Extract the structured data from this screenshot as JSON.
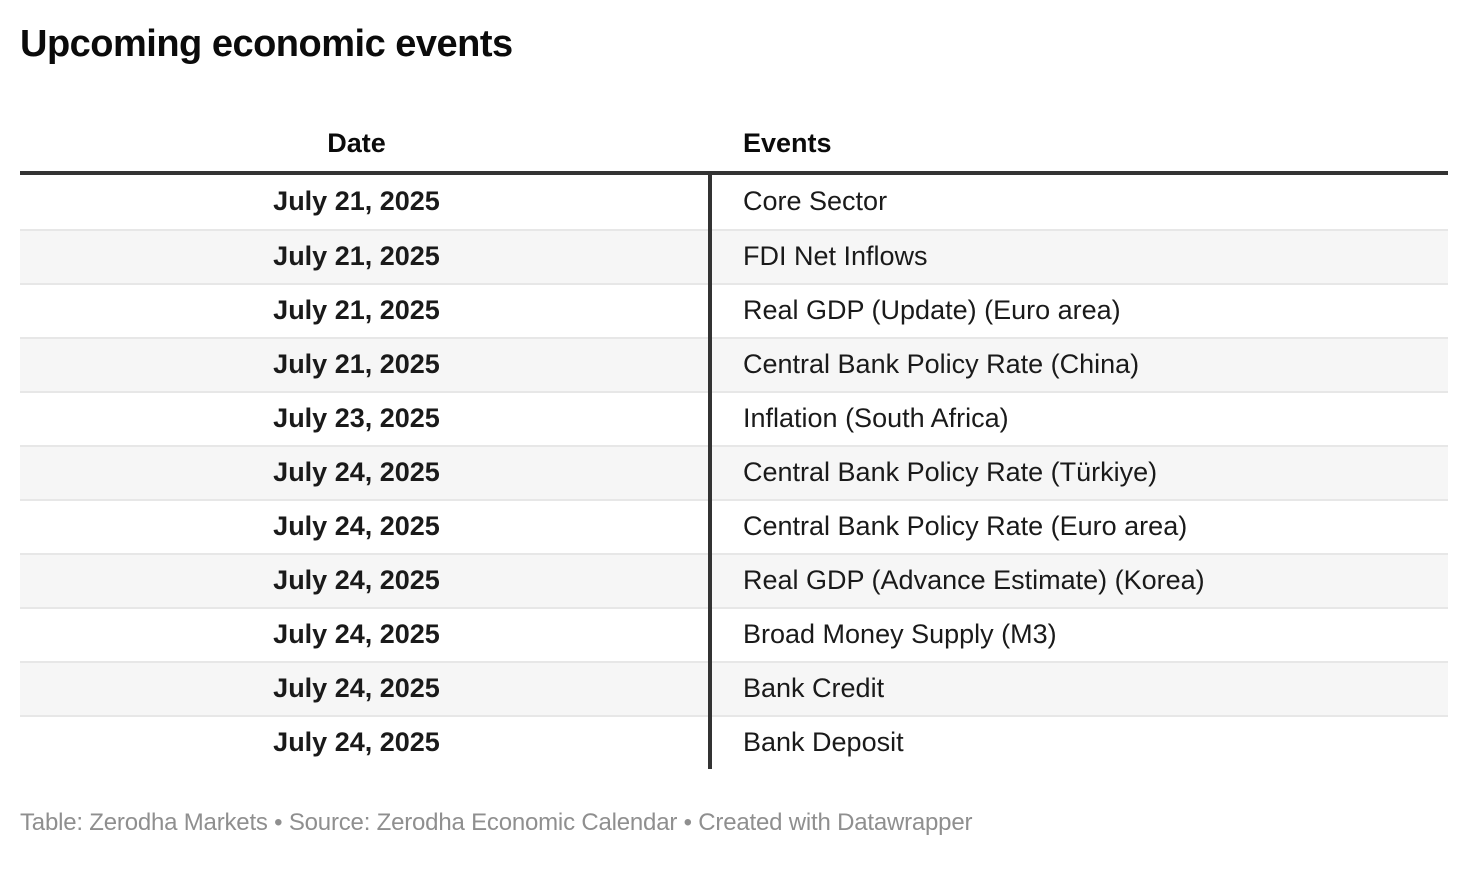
{
  "chart_data": {
    "type": "table",
    "title": "Upcoming economic events",
    "columns": [
      "Date",
      "Events"
    ],
    "rows": [
      [
        "July 21, 2025",
        "Core Sector"
      ],
      [
        "July 21, 2025",
        "FDI Net Inflows"
      ],
      [
        "July 21, 2025",
        "Real GDP (Update) (Euro area)"
      ],
      [
        "July 21, 2025",
        "Central Bank Policy Rate (China)"
      ],
      [
        "July 23, 2025",
        "Inflation (South Africa)"
      ],
      [
        "July 24, 2025",
        "Central Bank Policy Rate (Türkiye)"
      ],
      [
        "July 24, 2025",
        "Central Bank Policy Rate (Euro area)"
      ],
      [
        "July 24, 2025",
        "Real GDP (Advance Estimate) (Korea)"
      ],
      [
        "July 24, 2025",
        "Broad Money Supply (M3)"
      ],
      [
        "July 24, 2025",
        "Bank Credit"
      ],
      [
        "July 24, 2025",
        "Bank Deposit"
      ]
    ],
    "footer": "Table: Zerodha Markets • Source: Zerodha Economic Calendar • Created with Datawrapper",
    "layout": {
      "date_column_align": "center",
      "events_column_align": "left",
      "zebra_striping": true
    },
    "colors": {
      "header_rule": "#333333",
      "column_divider": "#333333",
      "stripe_background": "#f6f6f6",
      "row_border": "#e7e7e7",
      "body_text": "#1a1a1a",
      "footer_text": "#8f8f8f"
    }
  }
}
